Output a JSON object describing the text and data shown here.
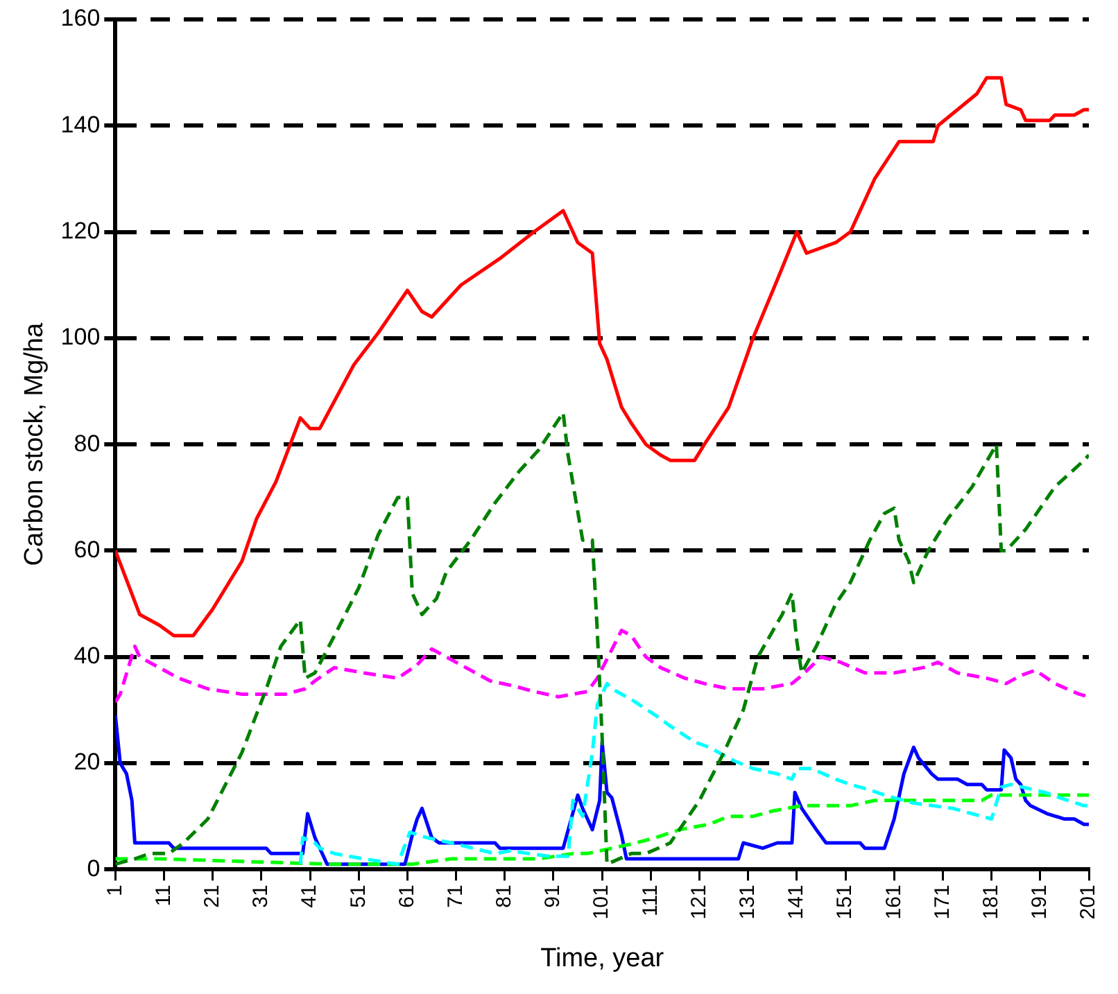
{
  "chart_data": {
    "type": "line",
    "xlabel": "Time, year",
    "ylabel": "Carbon stock, Mg/ha",
    "xlim": [
      1,
      201
    ],
    "xticks": [
      1,
      11,
      21,
      31,
      41,
      51,
      61,
      71,
      81,
      91,
      101,
      111,
      121,
      131,
      141,
      151,
      161,
      171,
      181,
      191,
      201
    ],
    "ylim": [
      0,
      160
    ],
    "yticks": [
      0,
      20,
      40,
      60,
      80,
      100,
      120,
      140,
      160
    ],
    "grid": "y",
    "legend": false,
    "marker": "none",
    "series": [
      {
        "color": "#ff0000",
        "line_style": "solid",
        "x": [
          1,
          6,
          10,
          13,
          17,
          21,
          27,
          30,
          34,
          39,
          41,
          43,
          50,
          55,
          61,
          64,
          66,
          72,
          80,
          87,
          93,
          96,
          99,
          100.5,
          102,
          105,
          107,
          110,
          113,
          115,
          120,
          122,
          127,
          132,
          137,
          141,
          143,
          149,
          152,
          157,
          162,
          169,
          170,
          174,
          178,
          180,
          183,
          184,
          187,
          188,
          193,
          194,
          198,
          200,
          201
        ],
        "values": [
          60,
          48,
          46,
          44,
          44,
          49,
          58,
          66,
          73,
          85,
          83,
          83,
          95,
          101,
          109,
          105,
          104,
          110,
          115,
          120,
          124,
          118,
          116,
          99,
          96,
          87,
          84,
          80,
          78,
          77,
          77,
          80,
          87,
          100,
          111,
          120,
          116,
          118,
          120,
          130,
          137,
          137,
          140,
          143,
          146,
          149,
          149,
          144,
          143,
          141,
          141,
          142,
          142,
          143,
          143
        ]
      },
      {
        "color": "#008000",
        "line_style": "dashed",
        "x": [
          1,
          5,
          8,
          12,
          15,
          20,
          27,
          32,
          35,
          39,
          40,
          42,
          46,
          51,
          55,
          59,
          61,
          62,
          64,
          67,
          69,
          74,
          79,
          84,
          88,
          93,
          94,
          97,
          99,
          100,
          101,
          102,
          107,
          110,
          115,
          121,
          126,
          130,
          133,
          138,
          140,
          141,
          142,
          145,
          149,
          152,
          156,
          159,
          161,
          162,
          164,
          165,
          168,
          172,
          177,
          182,
          183,
          184,
          188,
          191,
          194,
          200,
          201
        ],
        "values": [
          1,
          2,
          3,
          3,
          5,
          9.5,
          22,
          34,
          42,
          47,
          36,
          37,
          44,
          53,
          63,
          70,
          70,
          52,
          48,
          51,
          56,
          62,
          69,
          75,
          79,
          86,
          78,
          62,
          62,
          45,
          25,
          1,
          3,
          3,
          5,
          13,
          22,
          30,
          40,
          48,
          52,
          43,
          37,
          42,
          50,
          54,
          62,
          67,
          68,
          62,
          58,
          54,
          60,
          66,
          72,
          80,
          60,
          60,
          64,
          68,
          72,
          77,
          78
        ]
      },
      {
        "color": "#ff00ff",
        "line_style": "dashed",
        "x": [
          1,
          2,
          5,
          6,
          10,
          14,
          20,
          27,
          36,
          40,
          42,
          46,
          52,
          59,
          63,
          66,
          70,
          74,
          78,
          83,
          87,
          92,
          98,
          100,
          105,
          107,
          110,
          113,
          118,
          122,
          127,
          134,
          140,
          142,
          146,
          150,
          155,
          161,
          167,
          170,
          174,
          180,
          184,
          187,
          190,
          194,
          199,
          201
        ],
        "values": [
          31.5,
          33,
          42,
          40,
          38,
          36,
          34,
          33,
          33,
          34,
          35.5,
          38,
          37,
          36,
          38.5,
          41.5,
          39.5,
          37.5,
          35.5,
          34.5,
          33.5,
          32.5,
          33.5,
          36,
          45,
          44,
          40,
          38,
          36,
          35,
          34,
          34,
          35,
          36.5,
          40,
          39,
          37,
          37,
          38,
          39,
          37,
          36,
          35,
          36.5,
          37.5,
          35,
          33,
          32.5
        ]
      },
      {
        "color": "#00ffff",
        "line_style": "dashed",
        "x": [
          39,
          39.5,
          42,
          43,
          46,
          52,
          59,
          61.5,
          65,
          70,
          79,
          82,
          90,
          94,
          95,
          97,
          99,
          100,
          102,
          103,
          107,
          112,
          115,
          120,
          123,
          128,
          132,
          137,
          140,
          141,
          144,
          149,
          152,
          156,
          159,
          165,
          169,
          173,
          177,
          181,
          183,
          185,
          192,
          195,
          200,
          201
        ],
        "values": [
          1,
          6,
          5,
          4,
          3,
          2,
          1,
          7,
          6,
          5,
          3,
          3.5,
          2.5,
          2.5,
          13,
          10,
          22,
          31,
          35,
          34,
          32,
          29,
          27,
          24,
          23,
          20.5,
          19,
          18,
          17,
          19,
          19,
          17,
          16,
          15,
          14,
          12.5,
          12,
          11.5,
          10.5,
          9.5,
          15.5,
          16,
          14.5,
          13.5,
          12,
          12
        ]
      },
      {
        "color": "#00ff00",
        "line_style": "dashed",
        "x": [
          1,
          10,
          45,
          62,
          70,
          88,
          95,
          98,
          103,
          108,
          112,
          117,
          123,
          127,
          132,
          136,
          142,
          152,
          157,
          179,
          181,
          201
        ],
        "values": [
          2,
          2,
          1,
          1,
          2,
          2,
          3,
          3,
          4,
          5,
          6,
          7.5,
          8.5,
          10,
          10,
          11,
          12,
          12,
          13,
          13,
          14,
          14
        ]
      },
      {
        "color": "#0000ff",
        "line_style": "solid",
        "x": [
          1,
          2,
          3.3,
          4.4,
          5,
          12,
          13,
          32,
          33,
          39.5,
          40.5,
          42,
          44.5,
          60.5,
          62,
          63,
          64,
          66,
          67.5,
          79,
          80,
          93,
          96,
          97,
          99,
          100.5,
          101,
          102,
          103,
          105,
          106,
          129,
          130,
          134,
          137,
          140,
          140.6,
          142,
          145,
          147,
          154,
          155,
          159,
          161,
          163,
          165,
          166,
          168.7,
          170,
          174,
          176,
          179,
          180,
          183,
          183.6,
          185,
          186,
          187,
          188,
          189,
          192.4,
          196,
          198,
          200,
          201
        ],
        "values": [
          29,
          20,
          18,
          13,
          5,
          5,
          4,
          4,
          3,
          3,
          10.5,
          6,
          1,
          1,
          6.5,
          9.5,
          11.5,
          6,
          5,
          5,
          4,
          4,
          14,
          11.5,
          7.5,
          13,
          24,
          14.5,
          13.5,
          6.5,
          2,
          2,
          5,
          4,
          5,
          5,
          14.5,
          11.5,
          7.5,
          5,
          5,
          4,
          4,
          9.5,
          18,
          23,
          21,
          18,
          17,
          17,
          16,
          16,
          15,
          15,
          22.5,
          21,
          17,
          16,
          13,
          12,
          10.5,
          9.5,
          9.5,
          8.5,
          8.5
        ]
      }
    ]
  }
}
